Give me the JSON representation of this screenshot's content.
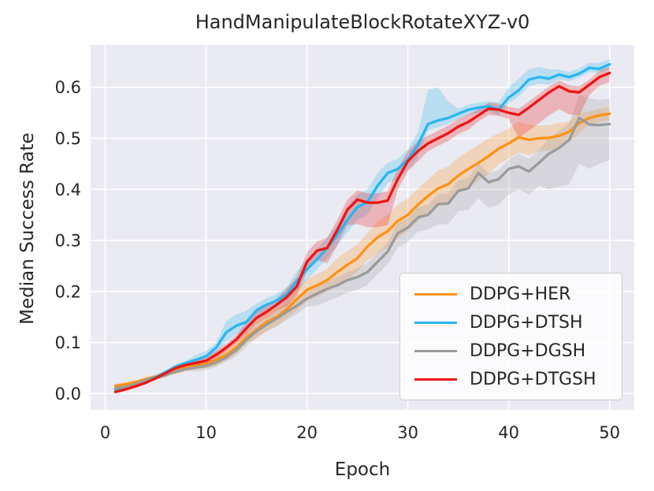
{
  "figure": {
    "title": "HandManipulateBlockRotateXYZ-v0",
    "plot_bg": "#eaeaf2",
    "grid_color": "#ffffff",
    "text_color": "#262626",
    "legend_border": "#cccccc"
  },
  "chart_data": {
    "type": "line",
    "title": "HandManipulateBlockRotateXYZ-v0",
    "xlabel": "Epoch",
    "ylabel": "Median Success Rate",
    "x_ticks": [
      0,
      10,
      20,
      30,
      40,
      50
    ],
    "y_ticks": [
      0.0,
      0.1,
      0.2,
      0.3,
      0.4,
      0.5,
      0.6
    ],
    "xlim": [
      -1.45,
      52.45
    ],
    "ylim": [
      -0.032,
      0.683
    ],
    "grid": true,
    "legend_position": "lower right",
    "band_opacity": 0.25,
    "x": [
      1,
      2,
      3,
      4,
      5,
      6,
      7,
      8,
      9,
      10,
      11,
      12,
      13,
      14,
      15,
      16,
      17,
      18,
      19,
      20,
      21,
      22,
      23,
      24,
      25,
      26,
      27,
      28,
      29,
      30,
      31,
      32,
      33,
      34,
      35,
      36,
      37,
      38,
      39,
      40,
      41,
      42,
      43,
      44,
      45,
      46,
      47,
      48,
      49,
      50
    ],
    "series": [
      {
        "name": "DDPG+HER",
        "color": "#ff9114",
        "values": [
          0.015,
          0.018,
          0.022,
          0.028,
          0.033,
          0.04,
          0.046,
          0.051,
          0.055,
          0.058,
          0.066,
          0.076,
          0.09,
          0.11,
          0.125,
          0.14,
          0.15,
          0.165,
          0.185,
          0.203,
          0.212,
          0.222,
          0.238,
          0.252,
          0.265,
          0.288,
          0.306,
          0.318,
          0.338,
          0.35,
          0.37,
          0.387,
          0.402,
          0.41,
          0.427,
          0.44,
          0.452,
          0.465,
          0.48,
          0.49,
          0.502,
          0.497,
          0.5,
          0.501,
          0.505,
          0.513,
          0.53,
          0.54,
          0.545,
          0.548
        ],
        "band_lower": [
          0.011,
          0.014,
          0.018,
          0.024,
          0.029,
          0.036,
          0.038,
          0.043,
          0.047,
          0.05,
          0.054,
          0.064,
          0.078,
          0.098,
          0.107,
          0.122,
          0.132,
          0.147,
          0.163,
          0.181,
          0.19,
          0.2,
          0.211,
          0.225,
          0.238,
          0.261,
          0.274,
          0.286,
          0.306,
          0.318,
          0.338,
          0.355,
          0.367,
          0.375,
          0.392,
          0.405,
          0.417,
          0.43,
          0.45,
          0.46,
          0.472,
          0.467,
          0.475,
          0.476,
          0.48,
          0.493,
          0.51,
          0.527,
          0.532,
          0.535
        ],
        "band_upper": [
          0.019,
          0.022,
          0.026,
          0.032,
          0.037,
          0.044,
          0.054,
          0.059,
          0.063,
          0.066,
          0.078,
          0.088,
          0.102,
          0.122,
          0.143,
          0.158,
          0.168,
          0.183,
          0.207,
          0.225,
          0.234,
          0.244,
          0.265,
          0.279,
          0.292,
          0.315,
          0.338,
          0.35,
          0.37,
          0.382,
          0.402,
          0.419,
          0.437,
          0.445,
          0.462,
          0.475,
          0.487,
          0.5,
          0.51,
          0.52,
          0.532,
          0.527,
          0.525,
          0.526,
          0.53,
          0.533,
          0.55,
          0.553,
          0.558,
          0.561
        ]
      },
      {
        "name": "DDPG+DTSH",
        "color": "#29b6f0",
        "values": [
          0.008,
          0.012,
          0.018,
          0.025,
          0.032,
          0.042,
          0.053,
          0.06,
          0.066,
          0.073,
          0.09,
          0.12,
          0.133,
          0.14,
          0.163,
          0.174,
          0.182,
          0.195,
          0.22,
          0.243,
          0.263,
          0.285,
          0.31,
          0.34,
          0.365,
          0.375,
          0.407,
          0.432,
          0.44,
          0.458,
          0.487,
          0.528,
          0.535,
          0.54,
          0.548,
          0.556,
          0.56,
          0.563,
          0.556,
          0.58,
          0.594,
          0.615,
          0.62,
          0.617,
          0.625,
          0.62,
          0.627,
          0.638,
          0.636,
          0.645
        ],
        "band_lower": [
          0.004,
          0.008,
          0.014,
          0.021,
          0.028,
          0.038,
          0.049,
          0.056,
          0.056,
          0.063,
          0.08,
          0.102,
          0.115,
          0.122,
          0.15,
          0.161,
          0.169,
          0.182,
          0.2,
          0.223,
          0.243,
          0.265,
          0.29,
          0.315,
          0.34,
          0.35,
          0.382,
          0.412,
          0.42,
          0.438,
          0.462,
          0.515,
          0.522,
          0.528,
          0.538,
          0.546,
          0.55,
          0.553,
          0.544,
          0.568,
          0.582,
          0.602,
          0.607,
          0.605,
          0.615,
          0.612,
          0.619,
          0.63,
          0.628,
          0.636
        ],
        "band_upper": [
          0.012,
          0.016,
          0.022,
          0.029,
          0.036,
          0.046,
          0.057,
          0.064,
          0.076,
          0.083,
          0.1,
          0.142,
          0.155,
          0.162,
          0.176,
          0.187,
          0.195,
          0.208,
          0.24,
          0.263,
          0.283,
          0.305,
          0.33,
          0.365,
          0.39,
          0.4,
          0.432,
          0.452,
          0.46,
          0.478,
          0.512,
          0.595,
          0.6,
          0.572,
          0.558,
          0.566,
          0.57,
          0.573,
          0.57,
          0.6,
          0.617,
          0.635,
          0.64,
          0.635,
          0.635,
          0.63,
          0.637,
          0.648,
          0.648,
          0.656
        ]
      },
      {
        "name": "DDPG+DGSH",
        "color": "#9b9b9b",
        "values": [
          0.01,
          0.013,
          0.018,
          0.024,
          0.03,
          0.036,
          0.043,
          0.048,
          0.051,
          0.054,
          0.061,
          0.071,
          0.085,
          0.105,
          0.122,
          0.135,
          0.147,
          0.16,
          0.172,
          0.186,
          0.196,
          0.205,
          0.212,
          0.222,
          0.228,
          0.238,
          0.258,
          0.278,
          0.314,
          0.325,
          0.345,
          0.35,
          0.371,
          0.372,
          0.397,
          0.402,
          0.432,
          0.414,
          0.42,
          0.44,
          0.445,
          0.435,
          0.452,
          0.47,
          0.481,
          0.497,
          0.54,
          0.527,
          0.526,
          0.528
        ],
        "band_lower": [
          0.006,
          0.009,
          0.014,
          0.02,
          0.026,
          0.032,
          0.039,
          0.044,
          0.043,
          0.046,
          0.053,
          0.063,
          0.073,
          0.093,
          0.11,
          0.123,
          0.131,
          0.144,
          0.156,
          0.17,
          0.172,
          0.181,
          0.188,
          0.198,
          0.203,
          0.213,
          0.233,
          0.253,
          0.286,
          0.297,
          0.317,
          0.322,
          0.331,
          0.332,
          0.357,
          0.36,
          0.382,
          0.364,
          0.37,
          0.39,
          0.4,
          0.39,
          0.407,
          0.4,
          0.405,
          0.41,
          0.45,
          0.44,
          0.45,
          0.457
        ],
        "band_upper": [
          0.014,
          0.017,
          0.022,
          0.028,
          0.034,
          0.04,
          0.047,
          0.052,
          0.059,
          0.062,
          0.069,
          0.079,
          0.097,
          0.117,
          0.134,
          0.147,
          0.163,
          0.176,
          0.188,
          0.202,
          0.212,
          0.221,
          0.228,
          0.238,
          0.246,
          0.256,
          0.276,
          0.296,
          0.334,
          0.345,
          0.365,
          0.37,
          0.391,
          0.392,
          0.417,
          0.422,
          0.45,
          0.432,
          0.438,
          0.458,
          0.47,
          0.46,
          0.477,
          0.5,
          0.515,
          0.53,
          0.585,
          0.578,
          0.575,
          0.577
        ]
      },
      {
        "name": "DDPG+DTGSH",
        "color": "#f01414",
        "values": [
          0.003,
          0.008,
          0.014,
          0.021,
          0.03,
          0.04,
          0.05,
          0.056,
          0.06,
          0.064,
          0.076,
          0.09,
          0.106,
          0.128,
          0.148,
          0.16,
          0.174,
          0.189,
          0.21,
          0.258,
          0.28,
          0.285,
          0.32,
          0.36,
          0.38,
          0.374,
          0.374,
          0.378,
          0.42,
          0.455,
          0.475,
          0.49,
          0.5,
          0.51,
          0.523,
          0.532,
          0.545,
          0.558,
          0.556,
          0.55,
          0.546,
          0.56,
          0.575,
          0.59,
          0.602,
          0.592,
          0.59,
          0.605,
          0.62,
          0.628
        ],
        "band_lower": [
          0.0,
          0.005,
          0.011,
          0.018,
          0.027,
          0.037,
          0.047,
          0.053,
          0.052,
          0.056,
          0.068,
          0.082,
          0.098,
          0.116,
          0.136,
          0.148,
          0.162,
          0.171,
          0.192,
          0.24,
          0.262,
          0.255,
          0.29,
          0.33,
          0.332,
          0.326,
          0.326,
          0.33,
          0.4,
          0.435,
          0.455,
          0.475,
          0.485,
          0.495,
          0.508,
          0.517,
          0.533,
          0.546,
          0.544,
          0.538,
          0.501,
          0.515,
          0.53,
          0.545,
          0.557,
          0.547,
          0.545,
          0.585,
          0.603,
          0.61
        ],
        "band_upper": [
          0.006,
          0.011,
          0.017,
          0.024,
          0.033,
          0.043,
          0.053,
          0.059,
          0.068,
          0.072,
          0.084,
          0.098,
          0.114,
          0.14,
          0.16,
          0.172,
          0.186,
          0.207,
          0.228,
          0.276,
          0.298,
          0.305,
          0.34,
          0.38,
          0.398,
          0.392,
          0.392,
          0.396,
          0.44,
          0.475,
          0.495,
          0.505,
          0.515,
          0.525,
          0.538,
          0.547,
          0.557,
          0.57,
          0.568,
          0.562,
          0.558,
          0.572,
          0.587,
          0.602,
          0.614,
          0.604,
          0.602,
          0.615,
          0.632,
          0.64
        ]
      }
    ]
  }
}
